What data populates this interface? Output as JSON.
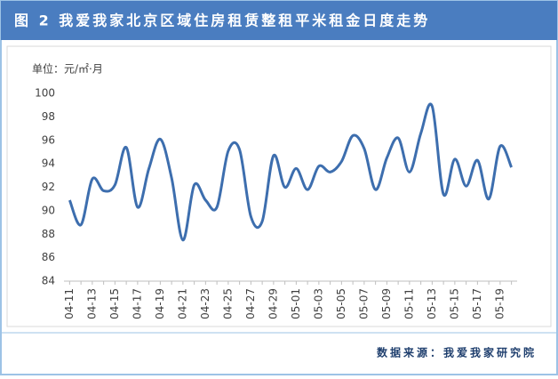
{
  "chart_data": {
    "type": "line",
    "title": "图 2 我爱我家北京区域住房租赁整租平米租金日度走势",
    "unit_label": "单位：元/㎡·月",
    "source": "数据来源：我爱我家研究院",
    "categories": [
      "04-11",
      null,
      "04-13",
      null,
      "04-15",
      null,
      "04-17",
      null,
      "04-19",
      null,
      "04-21",
      null,
      "04-23",
      null,
      "04-25",
      null,
      "04-27",
      null,
      "04-29",
      null,
      "05-01",
      null,
      "05-03",
      null,
      "05-05",
      null,
      "05-07",
      null,
      "05-09",
      null,
      "05-11",
      null,
      "05-13",
      null,
      "05-15",
      null,
      "05-17",
      null,
      "05-19",
      null
    ],
    "values": [
      90.9,
      88.8,
      92.7,
      91.7,
      92.2,
      95.4,
      90.3,
      93.6,
      96.1,
      92.8,
      87.5,
      92.2,
      90.9,
      90.3,
      95.1,
      95.2,
      89.5,
      89.1,
      94.7,
      92.0,
      93.6,
      91.8,
      93.8,
      93.3,
      94.2,
      96.4,
      95.3,
      91.8,
      94.5,
      96.2,
      93.3,
      96.6,
      98.9,
      91.4,
      94.4,
      92.1,
      94.3,
      91.0,
      95.5,
      93.7
    ],
    "color": "#3d6eae",
    "smooth": true,
    "ylim": [
      84,
      100
    ],
    "yticks": [
      84,
      86,
      88,
      90,
      92,
      94,
      96,
      98,
      100
    ],
    "grid": false
  }
}
